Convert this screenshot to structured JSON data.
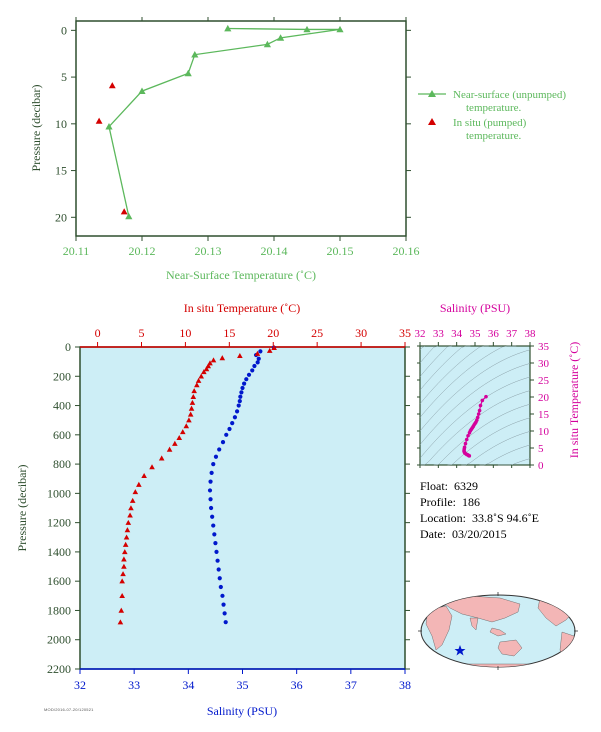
{
  "colors": {
    "green": "#5cb85c",
    "red": "#d40000",
    "blue": "#0018cc",
    "magenta": "#d4009c",
    "panel_bg": "#cdeef6",
    "axis_dark": "#2f4f2f"
  },
  "chart_data": [
    {
      "id": "near-surface",
      "type": "scatter",
      "xlabel": "Near-Surface Temperature (˚C)",
      "ylabel": "Pressure (decibar)",
      "xlim": [
        20.11,
        20.16
      ],
      "ylim": [
        22,
        -1
      ],
      "x_ticks": [
        "20.11",
        "20.12",
        "20.13",
        "20.14",
        "20.15",
        "20.16"
      ],
      "y_ticks": [
        "0",
        "5",
        "10",
        "15",
        "20"
      ],
      "grid": false,
      "legend_position": "right",
      "series": [
        {
          "name": "Near-surface (unpumped) temperature.",
          "legend_line1": "Near-surface (unpumped)",
          "legend_line2": "temperature.",
          "marker": "triangle-line",
          "points": [
            [
              20.133,
              -0.2
            ],
            [
              20.145,
              -0.1
            ],
            [
              20.15,
              -0.1
            ],
            [
              20.141,
              0.8
            ],
            [
              20.139,
              1.5
            ],
            [
              20.128,
              2.6
            ],
            [
              20.127,
              4.6
            ],
            [
              20.12,
              6.5
            ],
            [
              20.115,
              10.3
            ],
            [
              20.118,
              19.9
            ]
          ]
        },
        {
          "name": "In situ (pumped) temperature.",
          "legend_line1": "In situ (pumped)",
          "legend_line2": "temperature.",
          "marker": "triangle",
          "points": [
            [
              20.1155,
              5.9
            ],
            [
              20.1135,
              9.7
            ],
            [
              20.1173,
              19.4
            ]
          ]
        }
      ]
    },
    {
      "id": "profile",
      "type": "scatter",
      "ylabel": "Pressure (decibar)",
      "ylim": [
        2200,
        0
      ],
      "y_ticks": [
        "0",
        "200",
        "400",
        "600",
        "800",
        "1000",
        "1200",
        "1400",
        "1600",
        "1800",
        "2000",
        "2200"
      ],
      "top_axis": {
        "label": "In situ Temperature (˚C)",
        "lim": [
          -2,
          35
        ],
        "ticks": [
          "0",
          "5",
          "10",
          "15",
          "20",
          "25",
          "30",
          "35"
        ]
      },
      "bottom_axis": {
        "label": "Salinity (PSU)",
        "lim": [
          32,
          38
        ],
        "ticks": [
          "32",
          "33",
          "34",
          "35",
          "36",
          "37",
          "38"
        ]
      },
      "series": [
        {
          "name": "In situ Temperature",
          "marker": "triangle",
          "color": "red",
          "x": [
            20.1,
            19.6,
            18.2,
            16.2,
            14.2,
            13.2,
            12.8,
            12.6,
            12.4,
            12.1,
            11.8,
            11.5,
            11.3,
            11.0,
            10.9,
            10.8,
            10.7,
            10.6,
            10.4,
            10.1,
            9.7,
            9.3,
            8.8,
            8.2,
            7.3,
            6.2,
            5.3,
            4.7,
            4.3,
            4.0,
            3.8,
            3.7,
            3.5,
            3.4,
            3.3,
            3.2,
            3.1,
            3.0,
            3.0,
            2.9,
            2.8,
            2.8,
            2.7,
            2.6
          ],
          "y": [
            5,
            25,
            45,
            60,
            75,
            90,
            110,
            130,
            150,
            170,
            200,
            230,
            260,
            300,
            340,
            380,
            420,
            460,
            500,
            540,
            580,
            620,
            660,
            700,
            760,
            820,
            880,
            940,
            990,
            1050,
            1100,
            1150,
            1200,
            1250,
            1300,
            1350,
            1400,
            1450,
            1500,
            1550,
            1600,
            1700,
            1800,
            1880
          ]
        },
        {
          "name": "Salinity",
          "marker": "circle",
          "color": "blue",
          "x": [
            35.58,
            35.33,
            35.25,
            35.3,
            35.28,
            35.22,
            35.18,
            35.12,
            35.07,
            35.03,
            35.0,
            34.98,
            34.96,
            34.95,
            34.93,
            34.9,
            34.86,
            34.81,
            34.76,
            34.7,
            34.64,
            34.57,
            34.51,
            34.46,
            34.43,
            34.41,
            34.4,
            34.41,
            34.42,
            34.44,
            34.46,
            34.48,
            34.5,
            34.52,
            34.54,
            34.56,
            34.58,
            34.6,
            34.63,
            34.65,
            34.67,
            34.69
          ],
          "y": [
            5,
            30,
            55,
            80,
            105,
            130,
            160,
            190,
            220,
            250,
            280,
            310,
            340,
            370,
            400,
            440,
            480,
            520,
            560,
            600,
            650,
            700,
            750,
            800,
            860,
            920,
            980,
            1040,
            1100,
            1160,
            1220,
            1280,
            1340,
            1400,
            1460,
            1520,
            1580,
            1640,
            1700,
            1760,
            1820,
            1880
          ]
        }
      ]
    },
    {
      "id": "ts-inset",
      "type": "scatter",
      "xlabel": "Salinity (PSU)",
      "ylabel": "In situ Temperature (˚C)",
      "xlim": [
        32,
        38
      ],
      "ylim": [
        0,
        35
      ],
      "x_ticks": [
        "32",
        "33",
        "34",
        "35",
        "36",
        "37",
        "38"
      ],
      "y_ticks": [
        "0",
        "5",
        "10",
        "15",
        "20",
        "25",
        "30",
        "35"
      ],
      "grid": true,
      "series": [
        {
          "name": "T-S",
          "color": "magenta",
          "x": [
            35.6,
            35.4,
            35.3,
            35.25,
            35.2,
            35.15,
            35.1,
            35.05,
            35.0,
            34.95,
            34.9,
            34.85,
            34.8,
            34.75,
            34.7,
            34.62,
            34.55,
            34.48,
            34.43,
            34.41,
            34.4,
            34.42,
            34.45,
            34.5,
            34.55,
            34.6,
            34.65,
            34.69
          ],
          "y": [
            20.1,
            19.0,
            17.5,
            16.0,
            15.0,
            14.0,
            13.2,
            12.6,
            12.2,
            11.8,
            11.3,
            10.9,
            10.5,
            10.1,
            9.5,
            8.6,
            7.5,
            6.3,
            5.2,
            4.6,
            4.1,
            3.8,
            3.5,
            3.3,
            3.1,
            3.0,
            2.8,
            2.7
          ]
        }
      ]
    }
  ],
  "info": {
    "float_label": "Float:",
    "float_value": "6329",
    "profile_label": "Profile:",
    "profile_value": "186",
    "location_label": "Location:",
    "location_value": "33.8˚S  94.6˚E",
    "date_label": "Date:",
    "date_value": "03/20/2015"
  },
  "stamp": "MOD/2016-07-20/120521"
}
